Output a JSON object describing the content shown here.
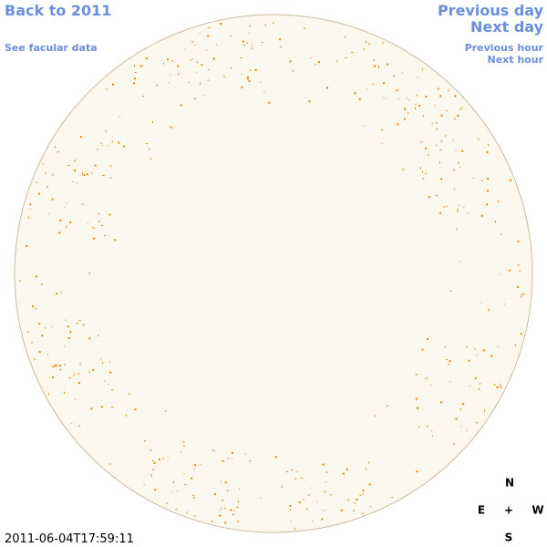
{
  "links": {
    "back": "Back to 2011",
    "facular_data": "See facular data",
    "previous_day": "Previous day",
    "next_day": "Next day",
    "previous_hour": "Previous hour",
    "next_hour": "Next hour"
  },
  "timestamp": "2011-06-04T17:59:11",
  "compass": {
    "north": "N",
    "east": "E",
    "center": "+",
    "west": "W",
    "south": "S"
  }
}
